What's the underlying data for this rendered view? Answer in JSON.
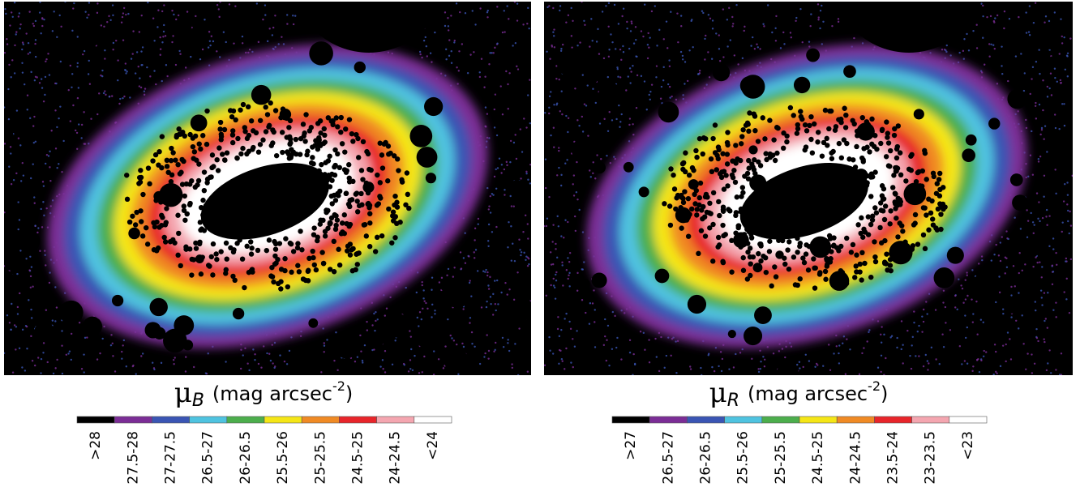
{
  "panels": [
    {
      "symbol": "μ",
      "subscript": "B",
      "unit": "(mag arcsec",
      "exponent": "-2",
      "unit_close": ")",
      "colorbar": {
        "labels": [
          ">28",
          "27.5-28",
          "27-27.5",
          "26.5-27",
          "26-26.5",
          "25.5-26",
          "25-25.5",
          "24.5-25",
          "24-24.5",
          "<24"
        ],
        "colors": [
          "#000000",
          "#7b2d96",
          "#3a55b4",
          "#4fc3e0",
          "#4cae4c",
          "#f5e616",
          "#f08a24",
          "#e8252a",
          "#f4a6b0",
          "#ffffff"
        ]
      }
    },
    {
      "symbol": "μ",
      "subscript": "R",
      "unit": "(mag arcsec",
      "exponent": "-2",
      "unit_close": ")",
      "colorbar": {
        "labels": [
          ">27",
          "26.5-27",
          "26-26.5",
          "25.5-26",
          "25-25.5",
          "24.5-25",
          "24-24.5",
          "23.5-24",
          "23-23.5",
          "<23"
        ],
        "colors": [
          "#000000",
          "#7b2d96",
          "#3a55b4",
          "#4fc3e0",
          "#4cae4c",
          "#f5e616",
          "#f08a24",
          "#e8252a",
          "#f4a6b0",
          "#ffffff"
        ]
      }
    }
  ]
}
